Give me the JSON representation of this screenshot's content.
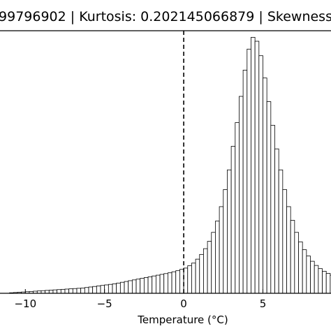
{
  "chart_data": {
    "type": "bar",
    "title": "99796902 | Kurtosis: 0.202145066879 | Skewness",
    "xlabel": "Temperature (°C)",
    "ylabel": "",
    "xlim": [
      -11.6,
      9.3
    ],
    "ylim": [
      0,
      1.0
    ],
    "grid": false,
    "legend": "none",
    "x_ticks": [
      {
        "value": -10,
        "label": "−10"
      },
      {
        "value": -5,
        "label": "−5"
      },
      {
        "value": 0,
        "label": "0"
      },
      {
        "value": 5,
        "label": "5"
      }
    ],
    "reference_line": {
      "x": 0,
      "style": "dashed"
    },
    "bins": {
      "start": -11.0,
      "width": 0.25
    },
    "values": [
      0.002,
      0.003,
      0.004,
      0.005,
      0.006,
      0.007,
      0.008,
      0.009,
      0.01,
      0.011,
      0.012,
      0.013,
      0.014,
      0.015,
      0.016,
      0.017,
      0.018,
      0.019,
      0.02,
      0.022,
      0.024,
      0.026,
      0.028,
      0.03,
      0.032,
      0.034,
      0.036,
      0.039,
      0.042,
      0.045,
      0.048,
      0.051,
      0.054,
      0.057,
      0.06,
      0.063,
      0.066,
      0.069,
      0.072,
      0.075,
      0.078,
      0.082,
      0.086,
      0.091,
      0.096,
      0.105,
      0.115,
      0.13,
      0.148,
      0.17,
      0.198,
      0.232,
      0.275,
      0.33,
      0.395,
      0.47,
      0.56,
      0.65,
      0.75,
      0.85,
      0.93,
      0.975,
      0.96,
      0.905,
      0.82,
      0.73,
      0.64,
      0.55,
      0.47,
      0.395,
      0.33,
      0.278,
      0.232,
      0.196,
      0.166,
      0.142,
      0.122,
      0.106,
      0.094,
      0.084,
      0.076,
      0.069,
      0.063,
      0.058,
      0.054,
      0.05,
      0.046,
      0.043,
      0.04,
      0.037,
      0.034,
      0.031,
      0.028,
      0.025,
      0.023,
      0.021,
      0.019,
      0.017,
      0.015,
      0.013,
      0.011,
      0.01,
      0.009,
      0.008,
      0.007,
      0.006,
      0.005,
      0.004,
      0.003,
      0.002,
      0.002,
      0.001,
      0.001,
      0.001,
      0.001,
      0.001,
      0.001,
      0.001,
      0.001,
      0.001,
      0.001
    ],
    "bar_fill": "#ffffff",
    "bar_stroke": "#000000"
  }
}
